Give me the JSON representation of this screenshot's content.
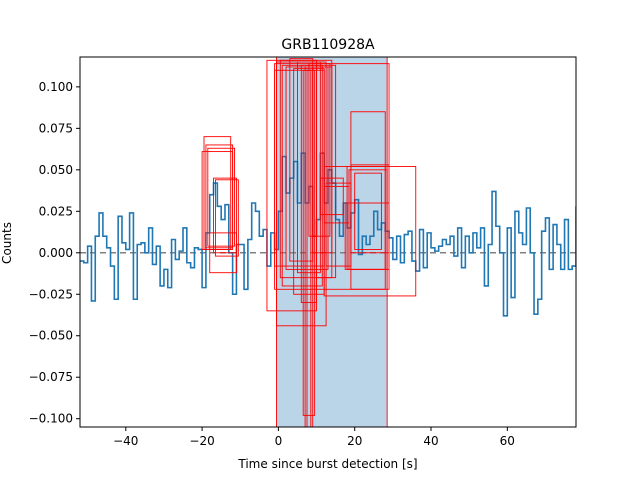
{
  "chart_data": {
    "type": "line",
    "title": "GRB110928A",
    "xlabel": "Time since burst detection [s]",
    "ylabel": "Counts",
    "xlim": [
      -52,
      78
    ],
    "ylim": [
      -0.105,
      0.118
    ],
    "xticks": [
      -40,
      -20,
      0,
      20,
      40,
      60
    ],
    "yticks": [
      -0.1,
      -0.075,
      -0.05,
      -0.025,
      0.0,
      0.025,
      0.05,
      0.075,
      0.1
    ],
    "xtick_labels": [
      "−40",
      "−20",
      "0",
      "20",
      "40",
      "60"
    ],
    "ytick_labels": [
      "−0.100",
      "−0.075",
      "−0.050",
      "−0.025",
      "0.000",
      "0.025",
      "0.050",
      "0.075",
      "0.100"
    ],
    "grid": false,
    "colors": {
      "lightcurve": "#1f77b4",
      "shaded_interval": "#a6c8e2",
      "boxes": "#ff0000",
      "zero_line": "#808080"
    },
    "zero_line": 0.0,
    "shaded_interval": {
      "x_start": -0.5,
      "x_end": 28.5
    },
    "series": [
      {
        "step": "post",
        "x": [
          -52,
          -51,
          -50,
          -49,
          -48,
          -47,
          -46,
          -45,
          -44,
          -43,
          -42,
          -41,
          -40,
          -39,
          -38,
          -37,
          -36,
          -35,
          -34,
          -33,
          -32,
          -31,
          -30,
          -29,
          -28,
          -27,
          -26,
          -25,
          -24,
          -23,
          -22,
          -21,
          -20,
          -19,
          -18,
          -17,
          -16,
          -15,
          -14,
          -13,
          -12,
          -11,
          -10,
          -9,
          -8,
          -7,
          -6,
          -5,
          -4,
          -3,
          -2,
          -1,
          0,
          1,
          2,
          3,
          4,
          5,
          6,
          7,
          8,
          9,
          10,
          11,
          12,
          13,
          14,
          15,
          16,
          17,
          18,
          19,
          20,
          21,
          22,
          23,
          24,
          25,
          26,
          27,
          28,
          29,
          30,
          31,
          32,
          33,
          34,
          35,
          36,
          37,
          38,
          39,
          40,
          41,
          42,
          43,
          44,
          45,
          46,
          47,
          48,
          49,
          50,
          51,
          52,
          53,
          54,
          55,
          56,
          57,
          58,
          59,
          60,
          61,
          62,
          63,
          64,
          65,
          66,
          67,
          68,
          69,
          70,
          71,
          72,
          73,
          74,
          75,
          76,
          77
        ],
        "y": [
          -0.005,
          -0.006,
          0.004,
          -0.029,
          0.01,
          0.024,
          0.01,
          0.003,
          -0.008,
          -0.028,
          0.022,
          0.006,
          0.002,
          0.024,
          -0.028,
          0.005,
          0.006,
          0.0,
          0.015,
          -0.007,
          0.004,
          -0.02,
          -0.01,
          -0.021,
          0.008,
          -0.004,
          0.001,
          0.015,
          -0.006,
          -0.009,
          0.003,
          0.002,
          -0.021,
          0.012,
          0.035,
          0.042,
          0.028,
          0.02,
          0.029,
          0.0,
          -0.025,
          0.005,
          0.005,
          -0.022,
          0.008,
          0.03,
          0.025,
          0.01,
          0.014,
          -0.008,
          0.012,
          0.002,
          0.025,
          0.058,
          0.036,
          0.045,
          0.055,
          0.03,
          0.06,
          0.03,
          0.04,
          0.01,
          0.02,
          0.06,
          0.03,
          0.05,
          0.042,
          0.02,
          0.01,
          0.03,
          0.015,
          0.024,
          0.032,
          -0.001,
          0.01,
          0.005,
          0.01,
          0.025,
          0.014,
          0.018,
          0.013,
          0.009,
          -0.004,
          0.01,
          -0.006,
          0.011,
          0.013,
          -0.005,
          -0.011,
          0.014,
          -0.009,
          0.012,
          0.003,
          0.001,
          0.004,
          0.008,
          0.005,
          0.01,
          -0.002,
          0.015,
          -0.009,
          0.01,
          0.0,
          0.012,
          0.003,
          0.015,
          -0.02,
          0.005,
          0.037,
          0.016,
          0.0,
          -0.038,
          0.015,
          -0.027,
          0.025,
          0.012,
          0.005,
          0.027,
          0.0,
          -0.037,
          -0.028,
          0.013,
          0.021,
          -0.01,
          0.017,
          0.005,
          -0.01,
          0.02,
          -0.01,
          -0.008
        ],
        "x_end": 78,
        "y_after_end": 0.028
      }
    ],
    "boxes": [
      {
        "x0": -19.5,
        "x1": -12.5,
        "y0": 0.002,
        "y1": 0.07
      },
      {
        "x0": -19.0,
        "x1": -12.0,
        "y0": 0.003,
        "y1": 0.065
      },
      {
        "x0": -18.5,
        "x1": -11.5,
        "y0": 0.004,
        "y1": 0.063
      },
      {
        "x0": -20.0,
        "x1": -12.0,
        "y0": 0.002,
        "y1": 0.061
      },
      {
        "x0": -17.0,
        "x1": -11.0,
        "y0": 0.0,
        "y1": 0.045
      },
      {
        "x0": -16.5,
        "x1": -10.5,
        "y0": -0.002,
        "y1": 0.044
      },
      {
        "x0": -18.0,
        "x1": -11.0,
        "y0": -0.012,
        "y1": 0.012
      },
      {
        "x0": -0.5,
        "x1": 28.5,
        "y0": -0.105,
        "y1": 0.118
      },
      {
        "x0": -1.0,
        "x1": 29.0,
        "y0": -0.022,
        "y1": 0.114
      },
      {
        "x0": -0.5,
        "x1": 12.5,
        "y0": -0.044,
        "y1": 0.115
      },
      {
        "x0": -3.0,
        "x1": 10.0,
        "y0": -0.035,
        "y1": 0.116
      },
      {
        "x0": 0.5,
        "x1": 14.0,
        "y0": -0.015,
        "y1": 0.116
      },
      {
        "x0": 1.0,
        "x1": 11.5,
        "y0": -0.02,
        "y1": 0.113
      },
      {
        "x0": 2.0,
        "x1": 13.0,
        "y0": -0.01,
        "y1": 0.112
      },
      {
        "x0": 3.0,
        "x1": 9.0,
        "y0": -0.005,
        "y1": 0.117
      },
      {
        "x0": 4.0,
        "x1": 12.0,
        "y0": -0.025,
        "y1": 0.111
      },
      {
        "x0": 5.0,
        "x1": 11.0,
        "y0": -0.012,
        "y1": 0.115
      },
      {
        "x0": 6.0,
        "x1": 10.0,
        "y0": -0.03,
        "y1": 0.113
      },
      {
        "x0": 7.0,
        "x1": 9.0,
        "y0": -0.105,
        "y1": 0.112
      },
      {
        "x0": 7.5,
        "x1": 8.5,
        "y0": -0.11,
        "y1": 0.11
      },
      {
        "x0": 6.5,
        "x1": 9.5,
        "y0": -0.098,
        "y1": 0.11
      },
      {
        "x0": 8.0,
        "x1": 13.5,
        "y0": 0.01,
        "y1": 0.114
      },
      {
        "x0": 9.0,
        "x1": 14.0,
        "y0": 0.0,
        "y1": 0.112
      },
      {
        "x0": 10.0,
        "x1": 15.0,
        "y0": -0.015,
        "y1": 0.113
      },
      {
        "x0": -1.0,
        "x1": 12.0,
        "y0": -0.008,
        "y1": 0.11
      },
      {
        "x0": 12.0,
        "x1": 18.5,
        "y0": 0.018,
        "y1": 0.04
      },
      {
        "x0": 12.5,
        "x1": 19.0,
        "y0": -0.008,
        "y1": 0.042
      },
      {
        "x0": 11.0,
        "x1": 17.0,
        "y0": 0.023,
        "y1": 0.045
      },
      {
        "x0": 19.0,
        "x1": 28.0,
        "y0": -0.022,
        "y1": 0.085
      },
      {
        "x0": 18.5,
        "x1": 28.5,
        "y0": -0.01,
        "y1": 0.05
      },
      {
        "x0": 19.0,
        "x1": 29.0,
        "y0": 0.0,
        "y1": 0.053
      },
      {
        "x0": 20.0,
        "x1": 27.0,
        "y0": 0.002,
        "y1": 0.048
      },
      {
        "x0": 18.0,
        "x1": 28.0,
        "y0": -0.01,
        "y1": 0.052
      },
      {
        "x0": 12.0,
        "x1": 36.0,
        "y0": -0.026,
        "y1": 0.052
      },
      {
        "x0": 17.5,
        "x1": 29.0,
        "y0": -0.01,
        "y1": 0.03
      }
    ]
  }
}
